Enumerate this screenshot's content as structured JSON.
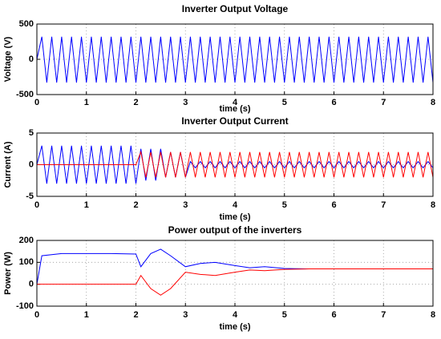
{
  "chart_data": [
    {
      "type": "line",
      "title": "Inverter Output Voltage",
      "xlabel": "time (s)",
      "ylabel": "Voltage (V)",
      "x": [
        0,
        0.1,
        0.2,
        0.3,
        0.4,
        0.5,
        0.6,
        0.7,
        0.8,
        0.9,
        1,
        1.1,
        1.2,
        1.3,
        1.4,
        1.5,
        1.6,
        1.7,
        1.8,
        1.9,
        2,
        2.1,
        2.2,
        2.3,
        2.4,
        2.5,
        2.6,
        2.7,
        2.8,
        2.9,
        3,
        3.1,
        3.2,
        3.3,
        3.4,
        3.5,
        3.6,
        3.7,
        3.8,
        3.9,
        4,
        4.1,
        4.2,
        4.3,
        4.4,
        4.5,
        4.6,
        4.7,
        4.8,
        4.9,
        5,
        5.1,
        5.2,
        5.3,
        5.4,
        5.5,
        5.6,
        5.7,
        5.8,
        5.9,
        6,
        6.1,
        6.2,
        6.3,
        6.4,
        6.5,
        6.6,
        6.7,
        6.8,
        6.9,
        7,
        7.1,
        7.2,
        7.3,
        7.4,
        7.5,
        7.6,
        7.7,
        7.8,
        7.9,
        8
      ],
      "series": [
        {
          "color": "#0000ff",
          "values": [
            0,
            320,
            -330,
            320,
            -330,
            320,
            -330,
            320,
            -330,
            320,
            -330,
            320,
            -330,
            320,
            -330,
            320,
            -330,
            320,
            -330,
            320,
            -330,
            320,
            -330,
            320,
            -330,
            320,
            -330,
            320,
            -330,
            320,
            -330,
            320,
            -330,
            320,
            -330,
            320,
            -330,
            320,
            -330,
            320,
            -330,
            320,
            -330,
            320,
            -330,
            320,
            -330,
            320,
            -330,
            320,
            -330,
            320,
            -330,
            320,
            -330,
            320,
            -330,
            320,
            -330,
            320,
            -330,
            320,
            -330,
            320,
            -330,
            320,
            -330,
            320,
            -330,
            320,
            -330,
            320,
            -330,
            320,
            -330,
            320,
            -330,
            320,
            -330,
            320,
            -330
          ]
        }
      ],
      "xlim": [
        0,
        8
      ],
      "xticks": [
        0,
        1,
        2,
        3,
        4,
        5,
        6,
        7,
        8
      ],
      "ylim": [
        -500,
        500
      ],
      "yticks": [
        -500,
        0,
        500
      ],
      "grid": true
    },
    {
      "type": "line",
      "title": "Inverter Output Current",
      "xlabel": "time (s)",
      "ylabel": "Current (A)",
      "x": [
        0,
        0.1,
        0.2,
        0.3,
        0.4,
        0.5,
        0.6,
        0.7,
        0.8,
        0.9,
        1,
        1.1,
        1.2,
        1.3,
        1.4,
        1.5,
        1.6,
        1.7,
        1.8,
        1.9,
        2,
        2.1,
        2.2,
        2.3,
        2.4,
        2.5,
        2.6,
        2.7,
        2.8,
        2.9,
        3,
        3.1,
        3.2,
        3.3,
        3.4,
        3.5,
        3.6,
        3.7,
        3.8,
        3.9,
        4,
        4.1,
        4.2,
        4.3,
        4.4,
        4.5,
        4.6,
        4.7,
        4.8,
        4.9,
        5,
        5.1,
        5.2,
        5.3,
        5.4,
        5.5,
        5.6,
        5.7,
        5.8,
        5.9,
        6,
        6.1,
        6.2,
        6.3,
        6.4,
        6.5,
        6.6,
        6.7,
        6.8,
        6.9,
        7,
        7.1,
        7.2,
        7.3,
        7.4,
        7.5,
        7.6,
        7.7,
        7.8,
        7.9,
        8
      ],
      "series": [
        {
          "color": "#0000ff",
          "values": [
            0,
            3,
            -3,
            3,
            -3,
            3,
            -3,
            3,
            -3,
            3,
            -3,
            3,
            -3,
            3,
            -3,
            3,
            -3,
            3,
            -3,
            3,
            -3,
            2.5,
            -2.5,
            2.5,
            -2.5,
            2.5,
            -2,
            2,
            -2,
            2,
            -2,
            0.5,
            -0.5,
            0.5,
            -0.5,
            0.5,
            -0.5,
            0.5,
            -0.5,
            0.5,
            -0.5,
            0.5,
            -0.5,
            0.5,
            -0.5,
            0.5,
            -0.5,
            0.5,
            -0.5,
            0.5,
            -0.5,
            0.5,
            -0.5,
            0.5,
            -0.5,
            0.5,
            -0.5,
            0.5,
            -0.5,
            0.5,
            -0.5,
            0.5,
            -0.5,
            0.5,
            -0.5,
            0.5,
            -0.5,
            0.5,
            -0.5,
            0.5,
            -0.5,
            0.5,
            -0.5,
            0.5,
            -0.5,
            0.5,
            -0.5,
            0.5,
            -0.5,
            0.5,
            -0.5
          ]
        },
        {
          "color": "#ff0000",
          "values": [
            0,
            0,
            0,
            0,
            0,
            0,
            0,
            0,
            0,
            0,
            0,
            0,
            0,
            0,
            0,
            0,
            0,
            0,
            0,
            0,
            0,
            2,
            -2,
            2,
            -2,
            2,
            -2,
            2,
            -2,
            2,
            -2,
            2,
            -2,
            2,
            -2,
            2,
            -2,
            2,
            -2,
            2,
            -2,
            2,
            -2,
            2,
            -2,
            2,
            -2,
            2,
            -2,
            2,
            -2,
            2,
            -2,
            2,
            -2,
            2,
            -2,
            2,
            -2,
            2,
            -2,
            2,
            -2,
            2,
            -2,
            2,
            -2,
            2,
            -2,
            2,
            -2,
            2,
            -2,
            2,
            -2,
            2,
            -2,
            2,
            -2,
            2,
            -2
          ]
        }
      ],
      "xlim": [
        0,
        8
      ],
      "xticks": [
        0,
        1,
        2,
        3,
        4,
        5,
        6,
        7,
        8
      ],
      "ylim": [
        -5,
        5
      ],
      "yticks": [
        -5,
        0,
        5
      ],
      "grid": true
    },
    {
      "type": "line",
      "title": "Power output of the inverters",
      "xlabel": "time (s)",
      "ylabel": "Power (W)",
      "x": [
        0,
        0.1,
        0.5,
        1,
        1.5,
        2,
        2.1,
        2.3,
        2.5,
        2.7,
        3,
        3.3,
        3.6,
        4,
        4.3,
        4.6,
        5,
        5.5,
        6,
        7,
        8
      ],
      "series": [
        {
          "color": "#0000ff",
          "values": [
            0,
            130,
            140,
            140,
            140,
            138,
            80,
            140,
            160,
            130,
            80,
            95,
            100,
            85,
            75,
            80,
            72,
            70,
            70,
            70,
            70
          ]
        },
        {
          "color": "#ff0000",
          "values": [
            0,
            0,
            0,
            0,
            0,
            0,
            40,
            -20,
            -50,
            -20,
            55,
            45,
            40,
            55,
            65,
            62,
            68,
            70,
            70,
            70,
            70
          ]
        }
      ],
      "xlim": [
        0,
        8
      ],
      "xticks": [
        0,
        1,
        2,
        3,
        4,
        5,
        6,
        7,
        8
      ],
      "ylim": [
        -100,
        200
      ],
      "yticks": [
        -100,
        0,
        100,
        200
      ],
      "grid": true
    }
  ]
}
